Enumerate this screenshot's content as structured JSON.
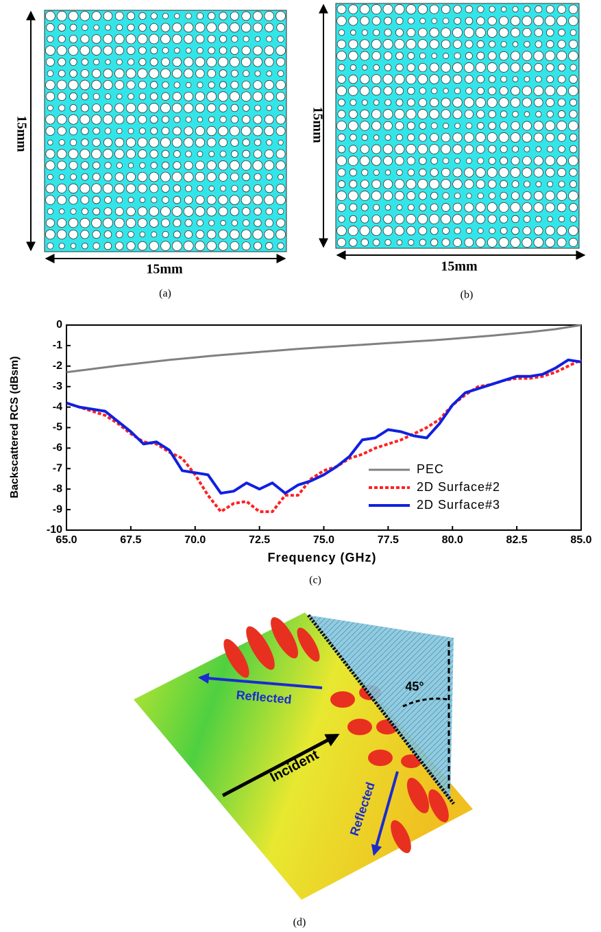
{
  "panel_a": {
    "width_label": "15mm",
    "height_label": "15mm",
    "caption": "(a)"
  },
  "panel_b": {
    "width_label": "15mm",
    "height_label": "15mm",
    "caption": "(b)"
  },
  "chart_data": {
    "type": "line",
    "caption": "(c)",
    "x_label": "Frequency (GHz)",
    "y_label": "Backscattered RCS (dBsm)",
    "xlim": [
      65,
      85
    ],
    "ylim": [
      -10,
      0
    ],
    "xticks": [
      {
        "value": 65,
        "label": "65.0"
      },
      {
        "value": 67.5,
        "label": "67.5"
      },
      {
        "value": 70,
        "label": "70.0"
      },
      {
        "value": 72.5,
        "label": "72.5"
      },
      {
        "value": 75,
        "label": "75.0"
      },
      {
        "value": 77.5,
        "label": "77.5"
      },
      {
        "value": 80,
        "label": "80.0"
      },
      {
        "value": 82.5,
        "label": "82.5"
      },
      {
        "value": 85,
        "label": "85.0"
      }
    ],
    "yticks": [
      0,
      -1,
      -2,
      -3,
      -4,
      -5,
      -6,
      -7,
      -8,
      -9,
      -10
    ],
    "legend": "lower right",
    "x": [
      65,
      65.5,
      66,
      66.5,
      67,
      67.5,
      68,
      68.5,
      69,
      69.5,
      70,
      70.5,
      71,
      71.5,
      72,
      72.5,
      73,
      73.5,
      74,
      74.5,
      75,
      75.5,
      76,
      76.5,
      77,
      77.5,
      78,
      78.5,
      79,
      79.5,
      80,
      80.5,
      81,
      81.5,
      82,
      82.5,
      83,
      83.5,
      84,
      84.5,
      85
    ],
    "series": [
      {
        "name": "PEC",
        "color": "#808080",
        "dash": false,
        "values": [
          -2.3,
          -2.22,
          -2.14,
          -2.06,
          -1.98,
          -1.91,
          -1.84,
          -1.77,
          -1.7,
          -1.64,
          -1.58,
          -1.52,
          -1.46,
          -1.41,
          -1.36,
          -1.31,
          -1.26,
          -1.21,
          -1.16,
          -1.12,
          -1.08,
          -1.04,
          -1.0,
          -0.96,
          -0.92,
          -0.88,
          -0.84,
          -0.8,
          -0.76,
          -0.72,
          -0.67,
          -0.62,
          -0.57,
          -0.52,
          -0.46,
          -0.4,
          -0.34,
          -0.27,
          -0.2,
          -0.1,
          0
        ]
      },
      {
        "name": "2D Surface#2",
        "color": "#ff2020",
        "dash": true,
        "values": [
          -3.8,
          -4.0,
          -4.2,
          -4.4,
          -4.8,
          -5.3,
          -5.7,
          -5.8,
          -6.2,
          -6.5,
          -7.3,
          -8.3,
          -9.1,
          -8.7,
          -8.6,
          -9.1,
          -9.1,
          -8.3,
          -8.3,
          -7.5,
          -7.1,
          -6.9,
          -6.5,
          -6.3,
          -6.0,
          -5.8,
          -5.6,
          -5.3,
          -5.0,
          -4.6,
          -3.9,
          -3.4,
          -3.0,
          -2.9,
          -2.7,
          -2.6,
          -2.6,
          -2.5,
          -2.3,
          -2.0,
          -1.7
        ]
      },
      {
        "name": "2D Surface#3",
        "color": "#1020e0",
        "dash": false,
        "values": [
          -3.8,
          -4.0,
          -4.1,
          -4.2,
          -4.7,
          -5.2,
          -5.8,
          -5.7,
          -6.1,
          -7.1,
          -7.2,
          -7.3,
          -8.2,
          -8.1,
          -7.7,
          -8.0,
          -7.7,
          -8.2,
          -7.8,
          -7.6,
          -7.3,
          -6.9,
          -6.4,
          -5.6,
          -5.5,
          -5.1,
          -5.2,
          -5.4,
          -5.5,
          -4.8,
          -3.9,
          -3.3,
          -3.1,
          -2.9,
          -2.7,
          -2.5,
          -2.5,
          -2.4,
          -2.1,
          -1.7,
          -1.8
        ]
      }
    ]
  },
  "panel_d": {
    "reflected_top": "Reflected",
    "incident": "Incident",
    "reflected_bottom": "Reflected",
    "angle": "45°",
    "caption": "(d)"
  }
}
